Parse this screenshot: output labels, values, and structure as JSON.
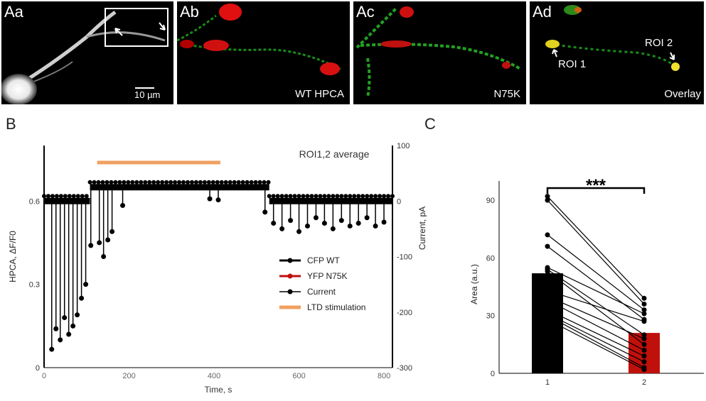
{
  "micrographs": [
    {
      "panel": "Aa",
      "scale_bar": "10 µm"
    },
    {
      "panel": "Ab",
      "caption": "WT HPCA"
    },
    {
      "panel": "Ac",
      "caption": "N75K"
    },
    {
      "panel": "Ad",
      "caption": "Overlay",
      "roi_labels": [
        "ROI 1",
        "ROI 2"
      ]
    }
  ],
  "panel_b_label": "B",
  "panel_c_label": "C",
  "colors": {
    "black": "#000000",
    "red": "#c0100c",
    "orange": "#f0a060"
  },
  "chart_data": [
    {
      "type": "line",
      "panel": "B",
      "annotation": "ROI1,2 average",
      "xlabel": "Time, s",
      "ylabel": "HPCA, ΔF/F0",
      "y2label": "Current, pA",
      "xlim": [
        0,
        820
      ],
      "ylim": [
        0,
        0.8
      ],
      "y2lim": [
        -300,
        100
      ],
      "xticks": [
        "0",
        "200",
        "400",
        "600",
        "800"
      ],
      "yticks": [
        "0",
        "0.3",
        "0.6"
      ],
      "y2ticks": [
        "100",
        "0",
        "-100",
        "-200",
        "-300"
      ],
      "legend": [
        "CFP WT",
        "YFP N75K",
        "Current",
        "LTD stimulation"
      ],
      "legend_position": "center-right",
      "ltd_stimulation": [
        125,
        415
      ],
      "current_spikes": [
        {
          "x": 18,
          "y": -267
        },
        {
          "x": 28,
          "y": -230
        },
        {
          "x": 38,
          "y": -250
        },
        {
          "x": 48,
          "y": -210
        },
        {
          "x": 58,
          "y": -240
        },
        {
          "x": 68,
          "y": -225
        },
        {
          "x": 78,
          "y": -205
        },
        {
          "x": 88,
          "y": -175
        },
        {
          "x": 98,
          "y": -150
        },
        {
          "x": 110,
          "y": -80
        },
        {
          "x": 130,
          "y": -75
        },
        {
          "x": 140,
          "y": -100
        },
        {
          "x": 150,
          "y": -70
        },
        {
          "x": 160,
          "y": -55
        },
        {
          "x": 185,
          "y": -8
        },
        {
          "x": 390,
          "y": 4
        },
        {
          "x": 410,
          "y": 2
        },
        {
          "x": 520,
          "y": -20
        },
        {
          "x": 540,
          "y": -40
        },
        {
          "x": 560,
          "y": -50
        },
        {
          "x": 580,
          "y": -35
        },
        {
          "x": 600,
          "y": -55
        },
        {
          "x": 620,
          "y": -45
        },
        {
          "x": 640,
          "y": -30
        },
        {
          "x": 660,
          "y": -40
        },
        {
          "x": 680,
          "y": -50
        },
        {
          "x": 700,
          "y": -35
        },
        {
          "x": 720,
          "y": -45
        },
        {
          "x": 740,
          "y": -40
        },
        {
          "x": 760,
          "y": -30
        },
        {
          "x": 780,
          "y": -45
        },
        {
          "x": 800,
          "y": -38
        }
      ],
      "baseline_segments": [
        {
          "x0": 0,
          "x1": 108,
          "y": 0.6
        },
        {
          "x0": 108,
          "x1": 530,
          "y": 0.65
        },
        {
          "x0": 530,
          "x1": 820,
          "y": 0.6
        }
      ]
    },
    {
      "type": "bar",
      "panel": "C",
      "categories": [
        "1",
        "2"
      ],
      "values": [
        52,
        21
      ],
      "ylabel": "Area (a.u.)",
      "ylim": [
        0,
        100
      ],
      "yticks": [
        "0",
        "30",
        "60",
        "90"
      ],
      "significance": "***",
      "paired_points": [
        [
          92,
          39
        ],
        [
          90,
          36
        ],
        [
          72,
          33
        ],
        [
          66,
          28
        ],
        [
          55,
          31
        ],
        [
          54,
          20
        ],
        [
          53,
          15
        ],
        [
          43,
          27
        ],
        [
          40,
          18
        ],
        [
          38,
          12
        ],
        [
          33,
          9
        ],
        [
          31,
          6
        ],
        [
          30,
          3
        ],
        [
          28,
          2
        ]
      ]
    }
  ]
}
